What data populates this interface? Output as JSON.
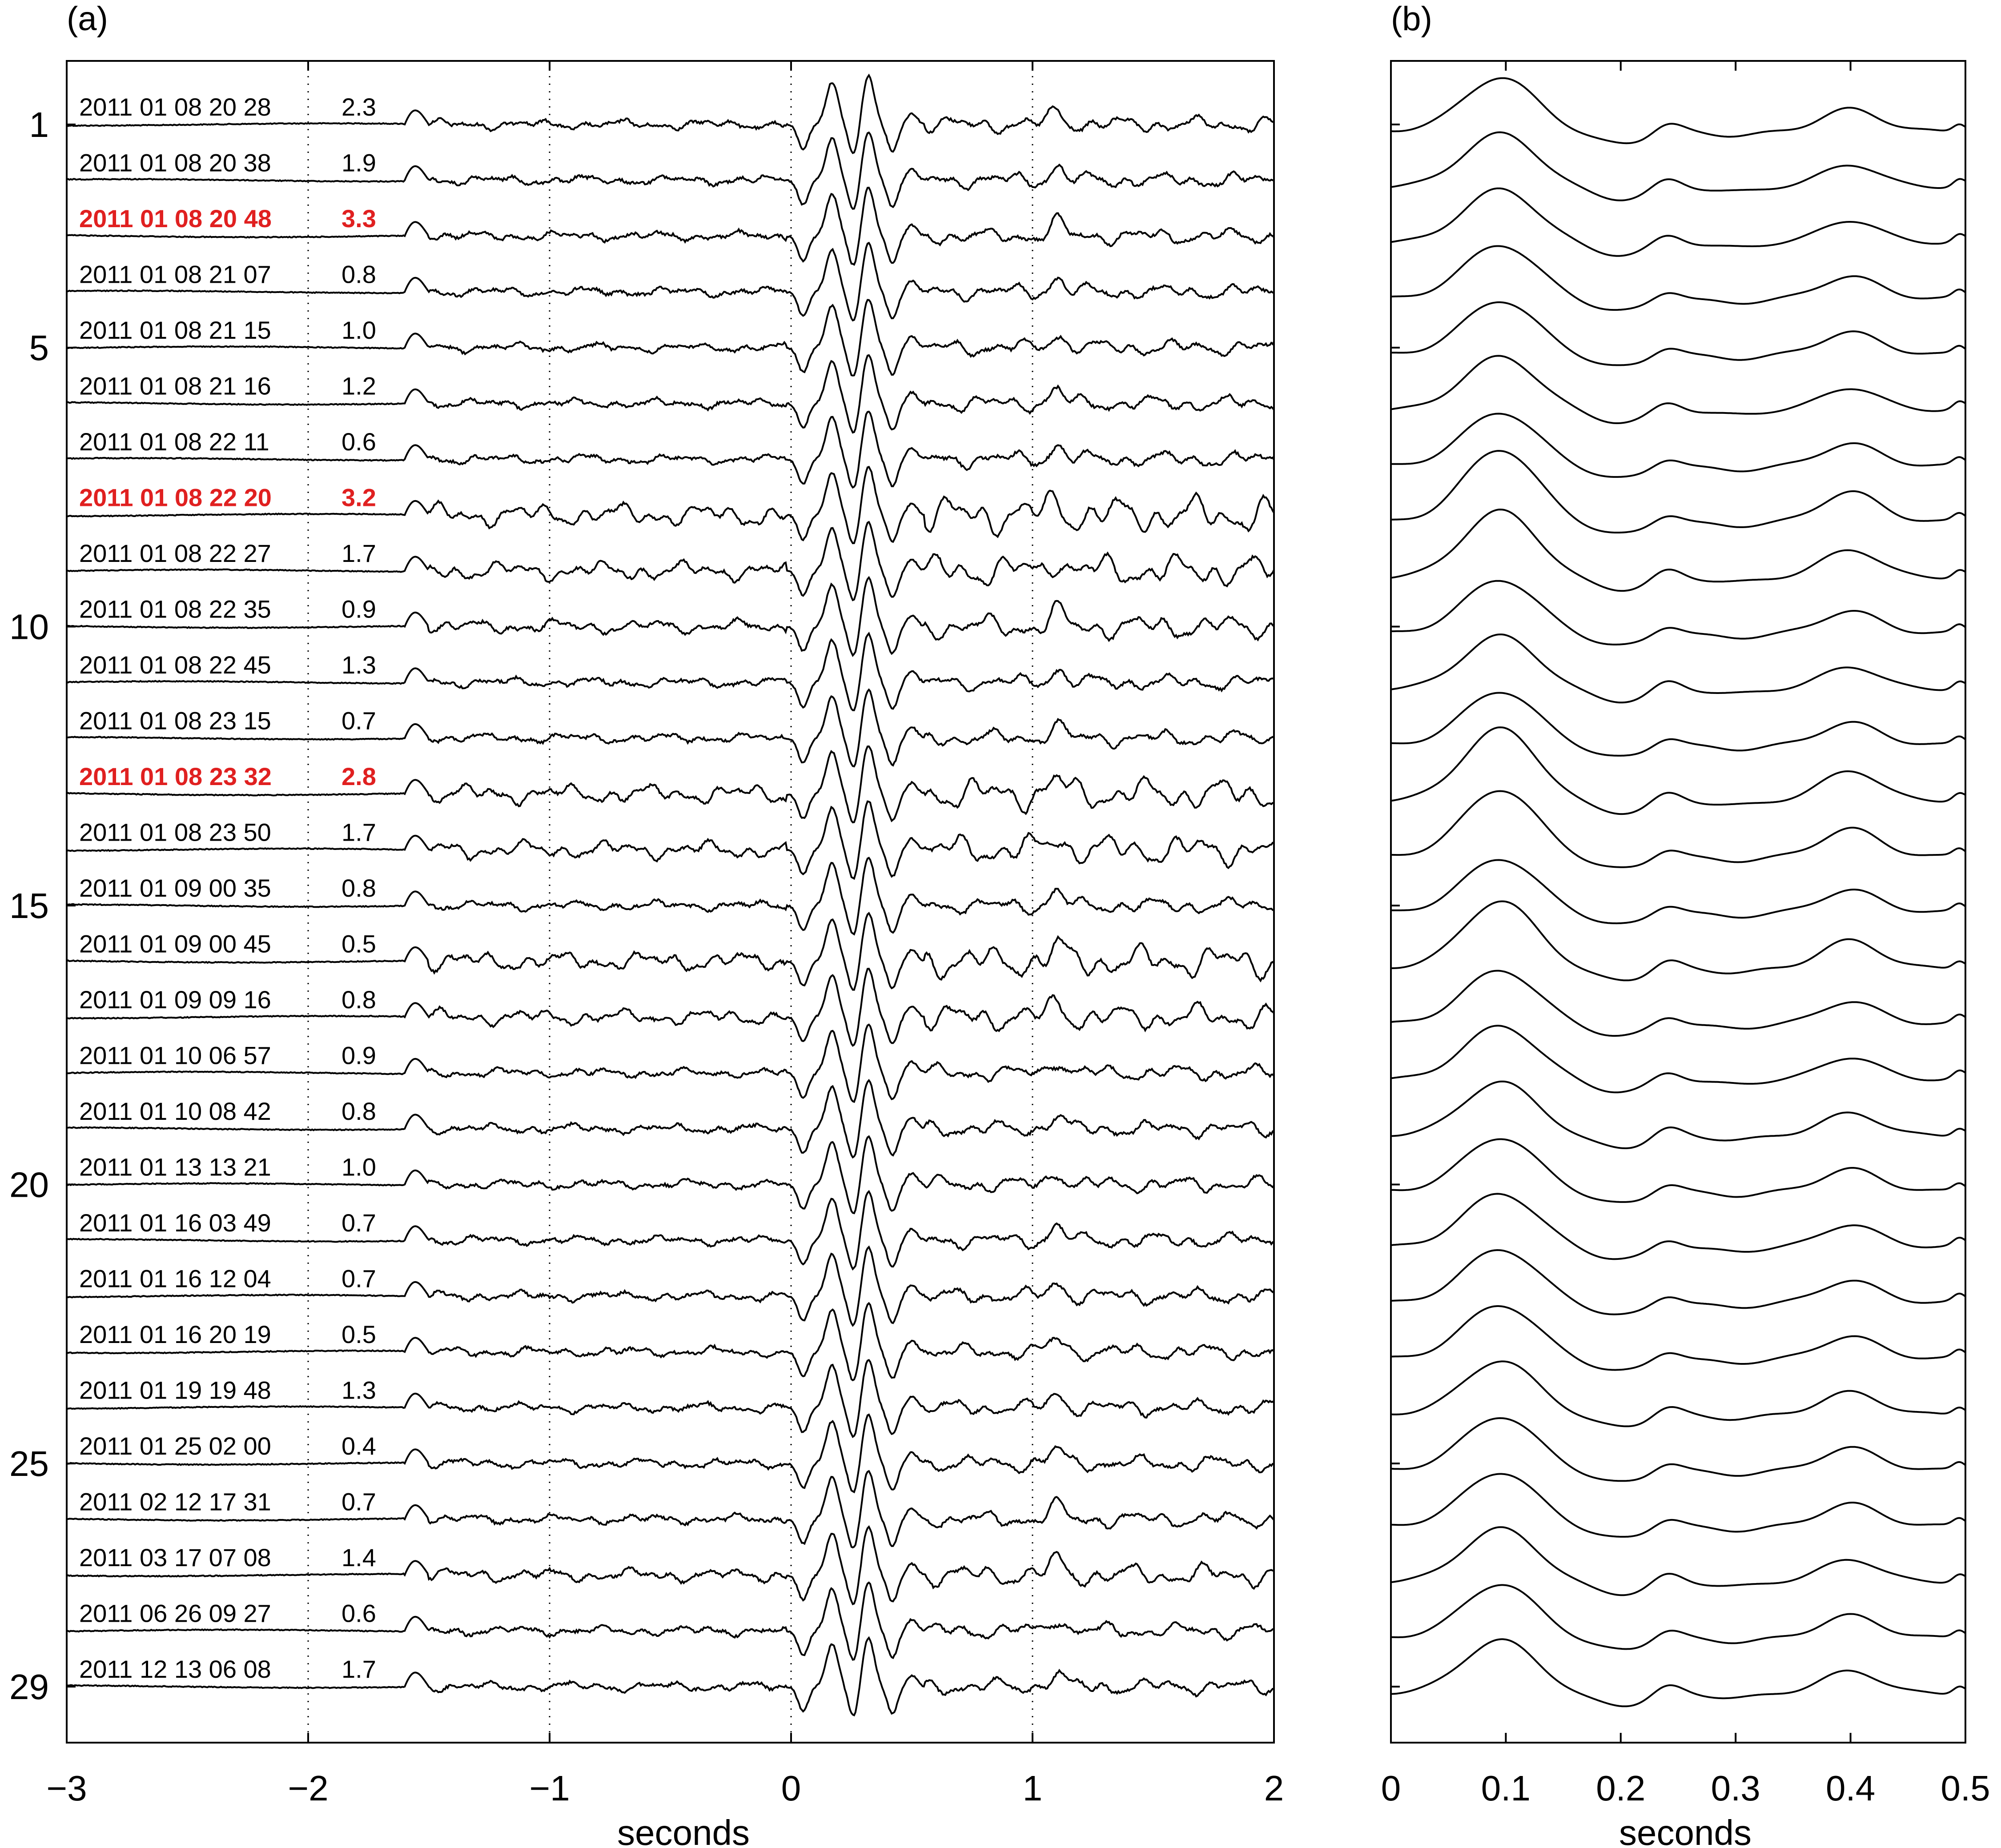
{
  "chart_data": [
    {
      "type": "line",
      "panel_label": "(a)",
      "xlabel": "seconds",
      "xlim": [
        -3,
        2
      ],
      "xticks": [
        -3,
        -2,
        -1,
        0,
        1,
        2
      ],
      "xtick_labels": [
        "−3",
        "−2",
        "−1",
        "0",
        "1",
        "2"
      ],
      "yticks": [
        1,
        5,
        10,
        15,
        20,
        25,
        29
      ],
      "ytick_labels": [
        "1",
        "5",
        "10",
        "15",
        "20",
        "25",
        "29"
      ],
      "vertical_dotted_gridlines_x": [
        -2,
        -1,
        0,
        1
      ],
      "grid": "vertical dotted",
      "highlight_color": "#e02020",
      "trace_color": "#000000",
      "events": [
        {
          "n": 1,
          "date": "2011 01 08 20 28",
          "mag": "2.3",
          "highlight": false
        },
        {
          "n": 2,
          "date": "2011 01 08 20 38",
          "mag": "1.9",
          "highlight": false
        },
        {
          "n": 3,
          "date": "2011 01 08 20 48",
          "mag": "3.3",
          "highlight": true
        },
        {
          "n": 4,
          "date": "2011 01 08 21 07",
          "mag": "0.8",
          "highlight": false
        },
        {
          "n": 5,
          "date": "2011 01 08 21 15",
          "mag": "1.0",
          "highlight": false
        },
        {
          "n": 6,
          "date": "2011 01 08 21 16",
          "mag": "1.2",
          "highlight": false
        },
        {
          "n": 7,
          "date": "2011 01 08 22 11",
          "mag": "0.6",
          "highlight": false
        },
        {
          "n": 8,
          "date": "2011 01 08 22 20",
          "mag": "3.2",
          "highlight": true
        },
        {
          "n": 9,
          "date": "2011 01 08 22 27",
          "mag": "1.7",
          "highlight": false
        },
        {
          "n": 10,
          "date": "2011 01 08 22 35",
          "mag": "0.9",
          "highlight": false
        },
        {
          "n": 11,
          "date": "2011 01 08 22 45",
          "mag": "1.3",
          "highlight": false
        },
        {
          "n": 12,
          "date": "2011 01 08 23 15",
          "mag": "0.7",
          "highlight": false
        },
        {
          "n": 13,
          "date": "2011 01 08 23 32",
          "mag": "2.8",
          "highlight": true
        },
        {
          "n": 14,
          "date": "2011 01 08 23 50",
          "mag": "1.7",
          "highlight": false
        },
        {
          "n": 15,
          "date": "2011 01 09 00 35",
          "mag": "0.8",
          "highlight": false
        },
        {
          "n": 16,
          "date": "2011 01 09 00 45",
          "mag": "0.5",
          "highlight": false
        },
        {
          "n": 17,
          "date": "2011 01 09 09 16",
          "mag": "0.8",
          "highlight": false
        },
        {
          "n": 18,
          "date": "2011 01 10 06 57",
          "mag": "0.9",
          "highlight": false
        },
        {
          "n": 19,
          "date": "2011 01 10 08 42",
          "mag": "0.8",
          "highlight": false
        },
        {
          "n": 20,
          "date": "2011 01 13 13 21",
          "mag": "1.0",
          "highlight": false
        },
        {
          "n": 21,
          "date": "2011 01 16 03 49",
          "mag": "0.7",
          "highlight": false
        },
        {
          "n": 22,
          "date": "2011 01 16 12 04",
          "mag": "0.7",
          "highlight": false
        },
        {
          "n": 23,
          "date": "2011 01 16 20 19",
          "mag": "0.5",
          "highlight": false
        },
        {
          "n": 24,
          "date": "2011 01 19 19 48",
          "mag": "1.3",
          "highlight": false
        },
        {
          "n": 25,
          "date": "2011 01 25 02 00",
          "mag": "0.4",
          "highlight": false
        },
        {
          "n": 26,
          "date": "2011 02 12 17 31",
          "mag": "0.7",
          "highlight": false
        },
        {
          "n": 27,
          "date": "2011 03 17 07 08",
          "mag": "1.4",
          "highlight": false
        },
        {
          "n": 28,
          "date": "2011 06 26 09 27",
          "mag": "0.6",
          "highlight": false
        },
        {
          "n": 29,
          "date": "2011 12 13 06 08",
          "mag": "1.7",
          "highlight": false
        }
      ]
    },
    {
      "type": "line",
      "panel_label": "(b)",
      "xlabel": "seconds",
      "xlim": [
        0,
        0.5
      ],
      "xticks": [
        0,
        0.1,
        0.2,
        0.3,
        0.4,
        0.5
      ],
      "xtick_labels": [
        "0",
        "0.1",
        "0.2",
        "0.3",
        "0.4",
        "0.5"
      ],
      "n_traces": 29,
      "trace_color": "#000000"
    }
  ]
}
